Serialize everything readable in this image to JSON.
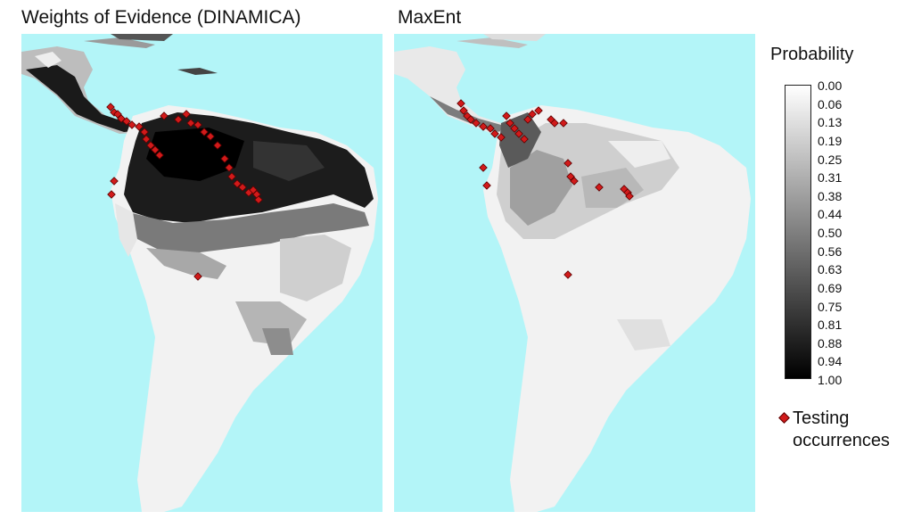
{
  "panels": [
    {
      "title": "Weights of Evidence (DINAMICA)",
      "occurrence_count": 32
    },
    {
      "title": "MaxEnt",
      "occurrence_count": 30
    }
  ],
  "legend": {
    "title": "Probability",
    "ticks": [
      "0.00",
      "0.06",
      "0.13",
      "0.19",
      "0.25",
      "0.31",
      "0.38",
      "0.44",
      "0.50",
      "0.56",
      "0.63",
      "0.69",
      "0.75",
      "0.81",
      "0.88",
      "0.94",
      "1.00"
    ],
    "occurrence_label_line1": "Testing",
    "occurrence_label_line2": "occurrences"
  },
  "colors": {
    "ocean": "#b3f5f8",
    "low_probability": "#ffffff",
    "high_probability": "#000000",
    "occurrence_marker": "#d11a1a"
  }
}
